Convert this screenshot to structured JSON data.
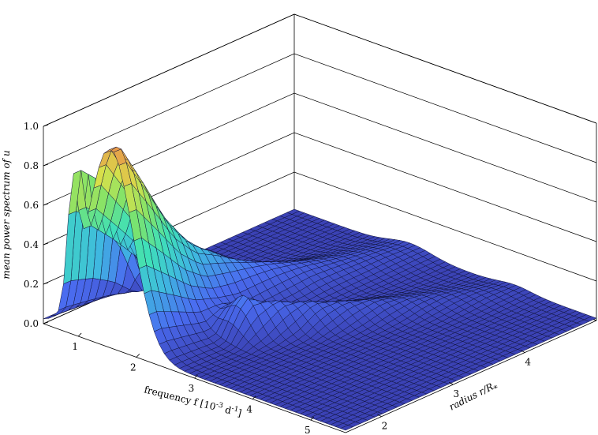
{
  "chart_data": {
    "type": "surface",
    "title": "",
    "zlabel": "mean power spectrum of u",
    "xlabel": "frequency f [10",
    "xlabel_exp": "-3",
    "xlabel_unit": " d",
    "xlabel_unit_exp": "-1",
    "xlabel_close": "]",
    "ylabel": "radius r/R",
    "ylabel_sub": "*",
    "x_ticks": [
      "1",
      "2",
      "3",
      "4",
      "5"
    ],
    "y_ticks": [
      "2",
      "3",
      "4"
    ],
    "z_ticks": [
      "0.0",
      "0.2",
      "0.4",
      "0.6",
      "0.8",
      "1.0"
    ],
    "xlim": [
      0.4,
      5.6
    ],
    "ylim": [
      1.5,
      5.0
    ],
    "zlim": [
      0.0,
      1.0
    ],
    "colormap": [
      "#3a3fb0",
      "#4a6cf0",
      "#3fb8e0",
      "#3fe0b8",
      "#7fe36a",
      "#d8e04a",
      "#e89a4a"
    ],
    "ridges": [
      {
        "y": 1.6,
        "peaks": [
          {
            "x": 1.55,
            "z": 1.0,
            "w": 0.55
          },
          {
            "x": 0.9,
            "z": 0.55,
            "w": 0.12
          }
        ]
      },
      {
        "y": 1.9,
        "peaks": [
          {
            "x": 1.55,
            "z": 0.78,
            "w": 0.55
          },
          {
            "x": 0.9,
            "z": 0.5,
            "w": 0.12
          }
        ]
      },
      {
        "y": 2.2,
        "peaks": [
          {
            "x": 1.55,
            "z": 0.55,
            "w": 0.55
          },
          {
            "x": 0.9,
            "z": 0.3,
            "w": 0.12
          }
        ]
      },
      {
        "y": 2.5,
        "peaks": [
          {
            "x": 1.6,
            "z": 0.38,
            "w": 0.5
          },
          {
            "x": 2.6,
            "z": 0.2,
            "w": 0.3
          }
        ]
      },
      {
        "y": 2.8,
        "peaks": [
          {
            "x": 1.7,
            "z": 0.28,
            "w": 0.45
          },
          {
            "x": 2.8,
            "z": 0.15,
            "w": 0.3
          }
        ]
      },
      {
        "y": 3.1,
        "peaks": [
          {
            "x": 1.8,
            "z": 0.2,
            "w": 0.45
          },
          {
            "x": 3.0,
            "z": 0.12,
            "w": 0.35
          }
        ]
      },
      {
        "y": 3.4,
        "peaks": [
          {
            "x": 1.9,
            "z": 0.15,
            "w": 0.45
          },
          {
            "x": 3.2,
            "z": 0.09,
            "w": 0.35
          }
        ]
      },
      {
        "y": 3.7,
        "peaks": [
          {
            "x": 2.0,
            "z": 0.11,
            "w": 0.5
          },
          {
            "x": 3.4,
            "z": 0.07,
            "w": 0.35
          }
        ]
      },
      {
        "y": 4.0,
        "peaks": [
          {
            "x": 2.1,
            "z": 0.08,
            "w": 0.5
          },
          {
            "x": 3.6,
            "z": 0.05,
            "w": 0.4
          }
        ]
      },
      {
        "y": 4.3,
        "peaks": [
          {
            "x": 2.2,
            "z": 0.06,
            "w": 0.5
          },
          {
            "x": 3.8,
            "z": 0.04,
            "w": 0.4
          }
        ]
      },
      {
        "y": 4.6,
        "peaks": [
          {
            "x": 2.3,
            "z": 0.05,
            "w": 0.5
          },
          {
            "x": 4.0,
            "z": 0.03,
            "w": 0.4
          }
        ]
      },
      {
        "y": 4.9,
        "peaks": [
          {
            "x": 2.4,
            "z": 0.04,
            "w": 0.5
          },
          {
            "x": 4.2,
            "z": 0.02,
            "w": 0.4
          }
        ]
      }
    ]
  }
}
